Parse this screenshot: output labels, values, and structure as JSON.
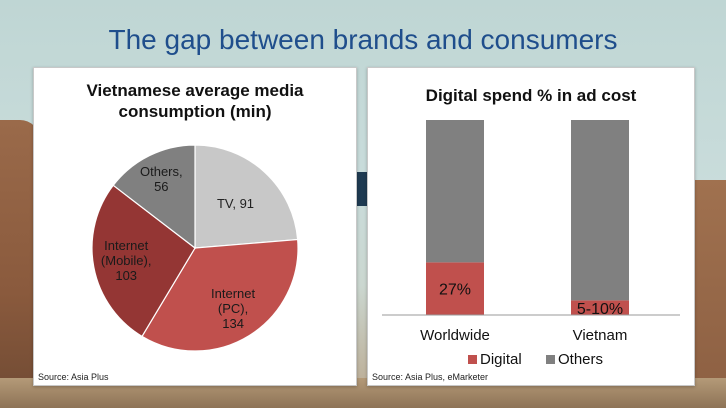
{
  "slide_title": "The gap between brands and consumers",
  "chart_data": [
    {
      "type": "pie",
      "title": "Vietnamese average media consumption (min)",
      "title_lines": [
        "Vietnamese average media",
        "consumption (min)"
      ],
      "slices": [
        {
          "label_lines": [
            "TV, 91"
          ],
          "value": 91,
          "color": "#c8c8c8"
        },
        {
          "label_lines": [
            "Internet",
            "(PC),",
            "134"
          ],
          "value": 134,
          "color": "#c0504d"
        },
        {
          "label_lines": [
            "Internet",
            "(Mobile),",
            "103"
          ],
          "value": 103,
          "color": "#943634"
        },
        {
          "label_lines": [
            "Others,",
            "56"
          ],
          "value": 56,
          "color": "#808080"
        }
      ],
      "source": "Source: Asia Plus"
    },
    {
      "type": "bar",
      "stacked": true,
      "percent": true,
      "title": "Digital spend % in ad cost",
      "categories": [
        "Worldwide",
        "Vietnam"
      ],
      "series": [
        {
          "name": "Digital",
          "values": [
            27,
            7.5
          ],
          "data_labels": [
            "27%",
            "5-10%"
          ],
          "color": "#c0504d"
        },
        {
          "name": "Others",
          "values": [
            73,
            92.5
          ],
          "color": "#808080"
        }
      ],
      "ylim": [
        0,
        100
      ],
      "legend": "bottom",
      "source": "Source: Asia Plus, eMarketer"
    }
  ]
}
